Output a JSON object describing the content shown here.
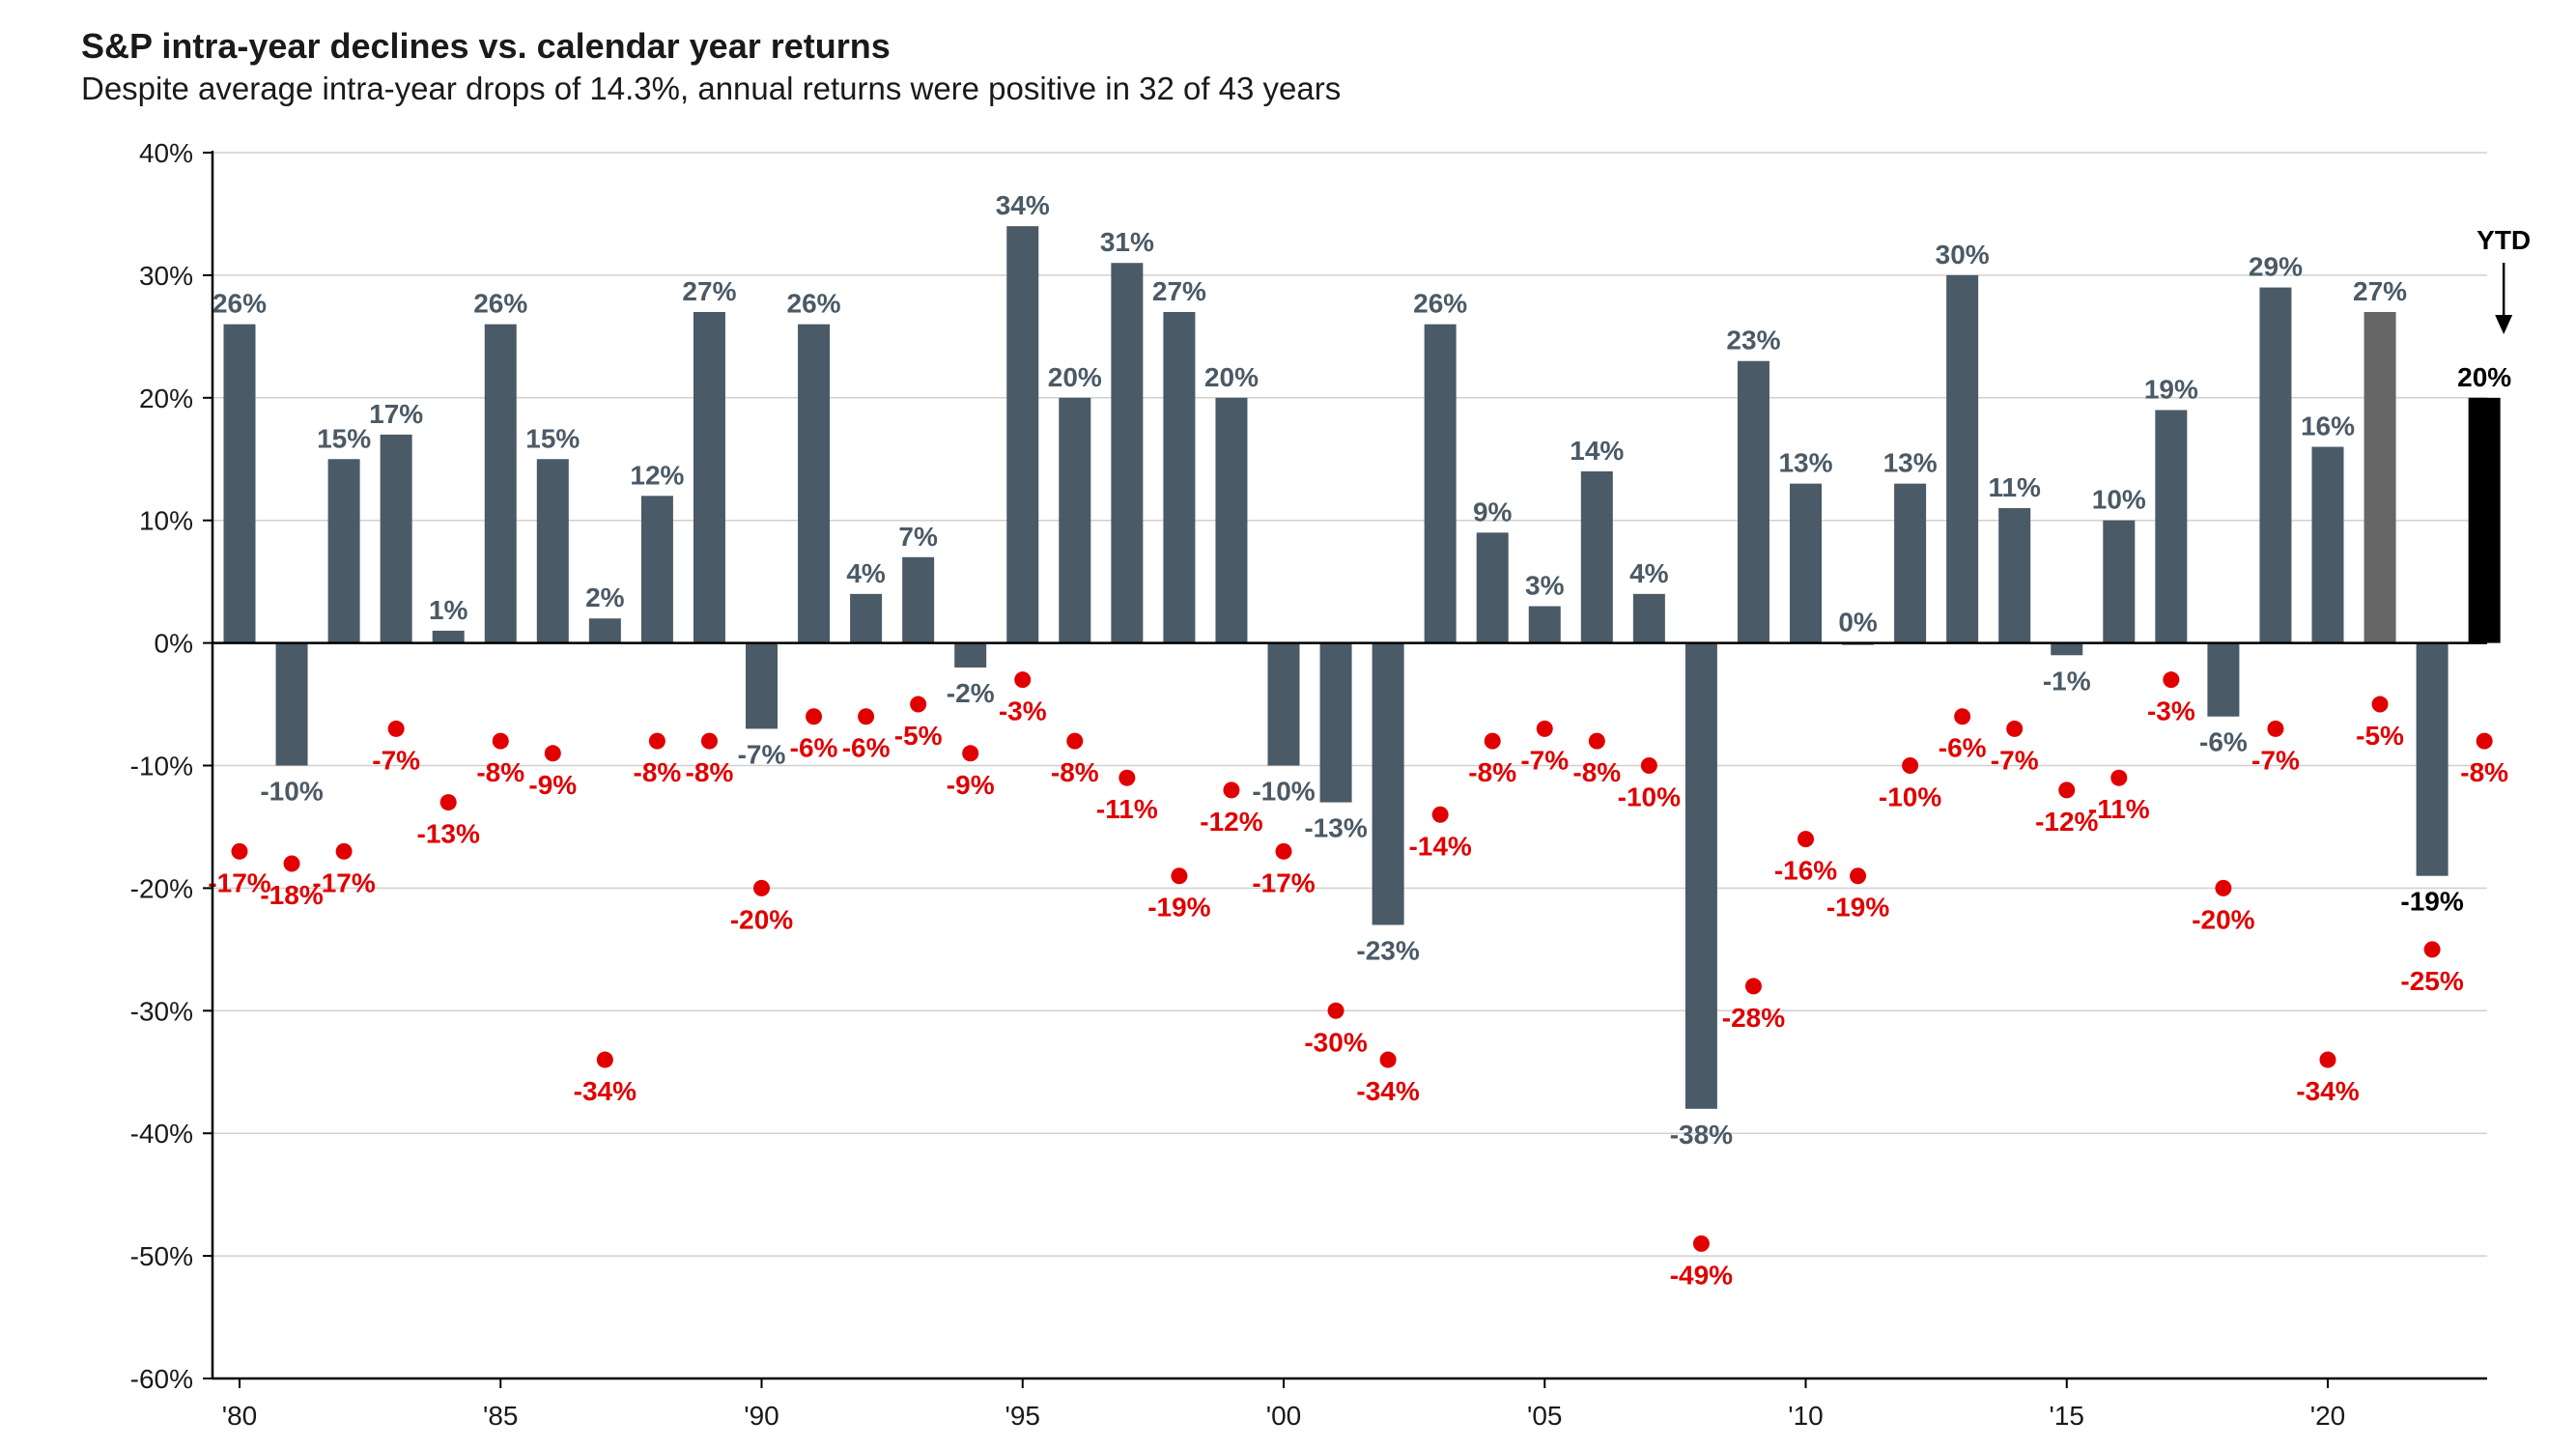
{
  "title": "S&P intra-year declines vs. calendar year returns",
  "subtitle": "Despite average intra-year drops of 14.3%, annual returns were positive in 32 of 43 years",
  "colors": {
    "bar": "#4a5a66",
    "bar_previous": "#666666",
    "bar_ytd": "#000000",
    "decline_dot": "#e00000",
    "decline_label": "#e00000",
    "bar_label": "#4a5a66",
    "ytd_label": "#000000",
    "grid": "#d0d0d0",
    "axis": "#000000"
  },
  "ytd_annotation": "YTD",
  "chart_data": {
    "type": "bar",
    "ylim": [
      -60,
      40
    ],
    "y_ticks": [
      {
        "value": 40,
        "label": "40%"
      },
      {
        "value": 30,
        "label": "30%"
      },
      {
        "value": 20,
        "label": "20%"
      },
      {
        "value": 10,
        "label": "10%"
      },
      {
        "value": 0,
        "label": "0%"
      },
      {
        "value": -10,
        "label": "-10%"
      },
      {
        "value": -20,
        "label": "-20%"
      },
      {
        "value": -30,
        "label": "-30%"
      },
      {
        "value": -40,
        "label": "-40%"
      },
      {
        "value": -50,
        "label": "-50%"
      },
      {
        "value": -60,
        "label": "-60%"
      }
    ],
    "x_ticks": [
      {
        "year": 1980,
        "label": "'80"
      },
      {
        "year": 1985,
        "label": "'85"
      },
      {
        "year": 1990,
        "label": "'90"
      },
      {
        "year": 1995,
        "label": "'95"
      },
      {
        "year": 2000,
        "label": "'00"
      },
      {
        "year": 2005,
        "label": "'05"
      },
      {
        "year": 2010,
        "label": "'10"
      },
      {
        "year": 2015,
        "label": "'15"
      },
      {
        "year": 2020,
        "label": "'20"
      }
    ],
    "grid": true,
    "years": [
      1980,
      1981,
      1982,
      1983,
      1984,
      1985,
      1986,
      1987,
      1988,
      1989,
      1990,
      1991,
      1992,
      1993,
      1994,
      1995,
      1996,
      1997,
      1998,
      1999,
      2000,
      2001,
      2002,
      2003,
      2004,
      2005,
      2006,
      2007,
      2008,
      2009,
      2010,
      2011,
      2012,
      2013,
      2014,
      2015,
      2016,
      2017,
      2018,
      2019,
      2020,
      2021,
      2022,
      2023
    ],
    "series": [
      {
        "kind": "bar",
        "values": [
          26,
          -10,
          15,
          17,
          1,
          26,
          15,
          2,
          12,
          27,
          -7,
          26,
          4,
          7,
          -2,
          34,
          20,
          31,
          27,
          20,
          -10,
          -13,
          -23,
          26,
          9,
          3,
          14,
          4,
          -38,
          23,
          13,
          0,
          13,
          30,
          11,
          -1,
          10,
          19,
          -6,
          29,
          16,
          27,
          -19,
          20
        ],
        "labels": [
          "26%",
          "-10%",
          "15%",
          "17%",
          "1%",
          "26%",
          "15%",
          "2%",
          "12%",
          "27%",
          "-7%",
          "26%",
          "4%",
          "7%",
          "-2%",
          "34%",
          "20%",
          "31%",
          "27%",
          "20%",
          "-10%",
          "-13%",
          "-23%",
          "26%",
          "9%",
          "3%",
          "14%",
          "4%",
          "-38%",
          "23%",
          "13%",
          "0%",
          "13%",
          "30%",
          "11%",
          "-1%",
          "10%",
          "19%",
          "-6%",
          "29%",
          "16%",
          "27%",
          "-19%",
          "20%"
        ]
      },
      {
        "kind": "dot",
        "values": [
          -17,
          -18,
          -17,
          -7,
          -13,
          -8,
          -9,
          -34,
          -8,
          -8,
          -20,
          -6,
          -6,
          -5,
          -9,
          -3,
          -8,
          -11,
          -19,
          -12,
          -17,
          -30,
          -34,
          -14,
          -8,
          -7,
          -8,
          -10,
          -49,
          -28,
          -16,
          -19,
          -10,
          -6,
          -7,
          -12,
          -11,
          -3,
          -20,
          -7,
          -34,
          -5,
          -25,
          -8
        ],
        "labels": [
          "-17%",
          "-18%",
          "-17%",
          "-7%",
          "-13%",
          "-8%",
          "-9%",
          "-34%",
          "-8%",
          "-8%",
          "-20%",
          "-6%",
          "-6%",
          "-5%",
          "-9%",
          "-3%",
          "-8%",
          "-11%",
          "-19%",
          "-12%",
          "-17%",
          "-30%",
          "-34%",
          "-14%",
          "-8%",
          "-7%",
          "-8%",
          "-10%",
          "-49%",
          "-28%",
          "-16%",
          "-19%",
          "-10%",
          "-6%",
          "-7%",
          "-12%",
          "-11%",
          "-3%",
          "-20%",
          "-7%",
          "-34%",
          "-5%",
          "-25%",
          "-8%"
        ]
      }
    ]
  }
}
